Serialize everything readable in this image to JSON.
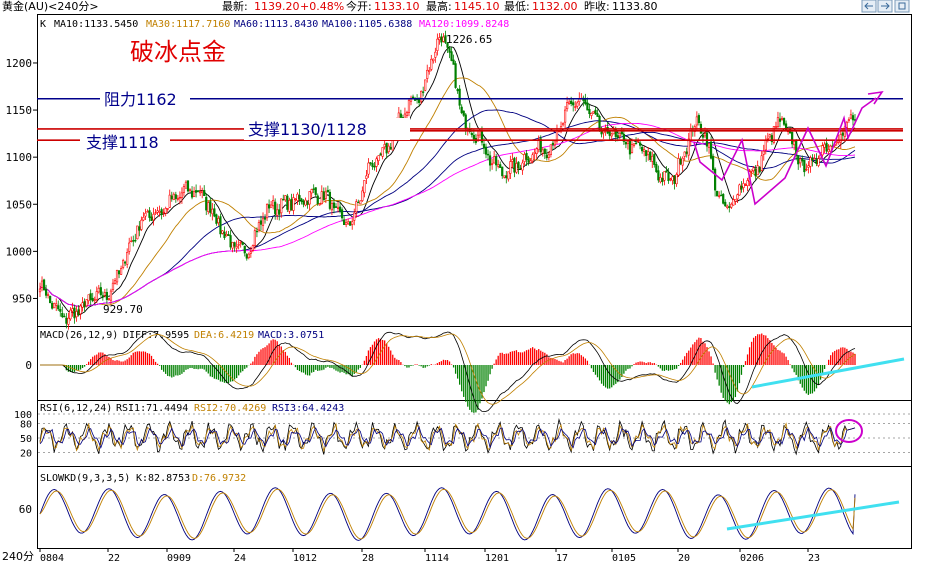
{
  "header": {
    "instrument": "黄金(AU)<240分>",
    "latest_label": "最新:",
    "latest": "1139.20",
    "change": "+0.48%",
    "open_label": "今开:",
    "open": "1133.10",
    "high_label": "最高:",
    "high": "1145.10",
    "low_label": "最低:",
    "low": "1132.00",
    "prev_close_label": "昨收:",
    "prev_close": "1133.80"
  },
  "colors": {
    "up": "#ff0000",
    "down": "#008000",
    "ma10": "#000000",
    "ma30": "#c08000",
    "ma60": "#000080",
    "ma100": "#000080",
    "ma120": "#ff00ff",
    "resistance": "#00008b",
    "support": "#cc0000",
    "trend_cyan": "#40e0f0",
    "annotation_magenta": "#cc00cc",
    "title_red": "#e00000",
    "grid": "#c0c0c0"
  },
  "main_panel": {
    "legend_k": "K",
    "ma10_label": "MA10:1133.5450",
    "ma30_label": "MA30:1117.7160",
    "ma60_label": "MA60:1113.8430",
    "ma100_label": "MA100:1105.6388",
    "ma120_label": "MA120:1099.8248",
    "title_annotation": "破冰点金",
    "resistance_label": "阻力1162",
    "support_mid_label": "支撑1130/1128",
    "support_low_label": "支撑1118",
    "peak_label": "1226.65",
    "trough_label": "929.70",
    "y_ticks": [
      "1200",
      "1150",
      "1100",
      "1050",
      "1000",
      "950"
    ]
  },
  "macd_panel": {
    "label": "MACD(26,12,9)",
    "diff_label": "DIFF:7.9595",
    "dea_label": "DEA:6.4219",
    "macd_label": "MACD:3.0751",
    "y_ticks": [
      "0"
    ]
  },
  "rsi_panel": {
    "label": "RSI(6,12,24)",
    "rsi1_label": "RSI1:71.4494",
    "rsi2_label": "RSI2:70.4269",
    "rsi3_label": "RSI3:64.4243",
    "y_ticks": [
      "100",
      "80",
      "50",
      "20"
    ]
  },
  "kd_panel": {
    "label": "SLOWKD(9,3,3,5)",
    "k_label": "K:82.8753",
    "d_label": "D:76.9732",
    "y_ticks": [
      "60"
    ]
  },
  "x_axis": {
    "period_label": "240分",
    "ticks": [
      "0804",
      "22",
      "0909",
      "24",
      "1012",
      "28",
      "1114",
      "1201",
      "17",
      "0105",
      "20",
      "0206",
      "23"
    ]
  },
  "chart_data": {
    "type": "line",
    "subtype": "candlestick",
    "y_range": [
      925,
      1235
    ],
    "price_anchors": {
      "x_index": [
        0,
        12,
        30,
        55,
        75,
        100,
        115,
        138,
        152,
        165,
        185,
        198,
        212,
        228,
        250,
        265,
        280,
        295,
        310,
        325,
        338,
        350,
        365,
        378,
        390,
        402
      ],
      "close": [
        960,
        930,
        952,
        1040,
        1065,
        1000,
        1048,
        1060,
        1030,
        1095,
        1160,
        1225,
        1130,
        1085,
        1110,
        1160,
        1125,
        1110,
        1075,
        1135,
        1045,
        1080,
        1135,
        1090,
        1115,
        1140
      ]
    },
    "horizontal_levels": [
      {
        "value": 1162,
        "label": "阻力1162"
      },
      {
        "value": 1130,
        "label": "支撑1130/1128"
      },
      {
        "value": 1128,
        "label": "支撑1130/1128"
      },
      {
        "value": 1118,
        "label": "支撑1118"
      }
    ],
    "peak": 1226.65,
    "trough": 929.7,
    "last": {
      "close": 1139.2,
      "open": 1133.1,
      "high": 1145.1,
      "low": 1132.0,
      "prev_close": 1133.8
    },
    "moving_averages": {
      "MA10": 1133.545,
      "MA30": 1117.716,
      "MA60": 1113.843,
      "MA100": 1105.6388,
      "MA120": 1099.8248
    },
    "macd": {
      "params": [
        26,
        12,
        9
      ],
      "diff": 7.9595,
      "dea": 6.4219,
      "macd": 3.0751
    },
    "rsi": {
      "params": [
        6,
        12,
        24
      ],
      "rsi1": 71.4494,
      "rsi2": 70.4269,
      "rsi3": 64.4243,
      "range": [
        0,
        100
      ]
    },
    "slowkd": {
      "params": [
        9,
        3,
        3,
        5
      ],
      "k": 82.8753,
      "d": 76.9732,
      "range": [
        0,
        100
      ]
    },
    "grid": false,
    "x_categories": [
      "0804",
      "22",
      "0909",
      "24",
      "1012",
      "28",
      "1114",
      "1201",
      "17",
      "0105",
      "20",
      "0206",
      "23"
    ]
  }
}
